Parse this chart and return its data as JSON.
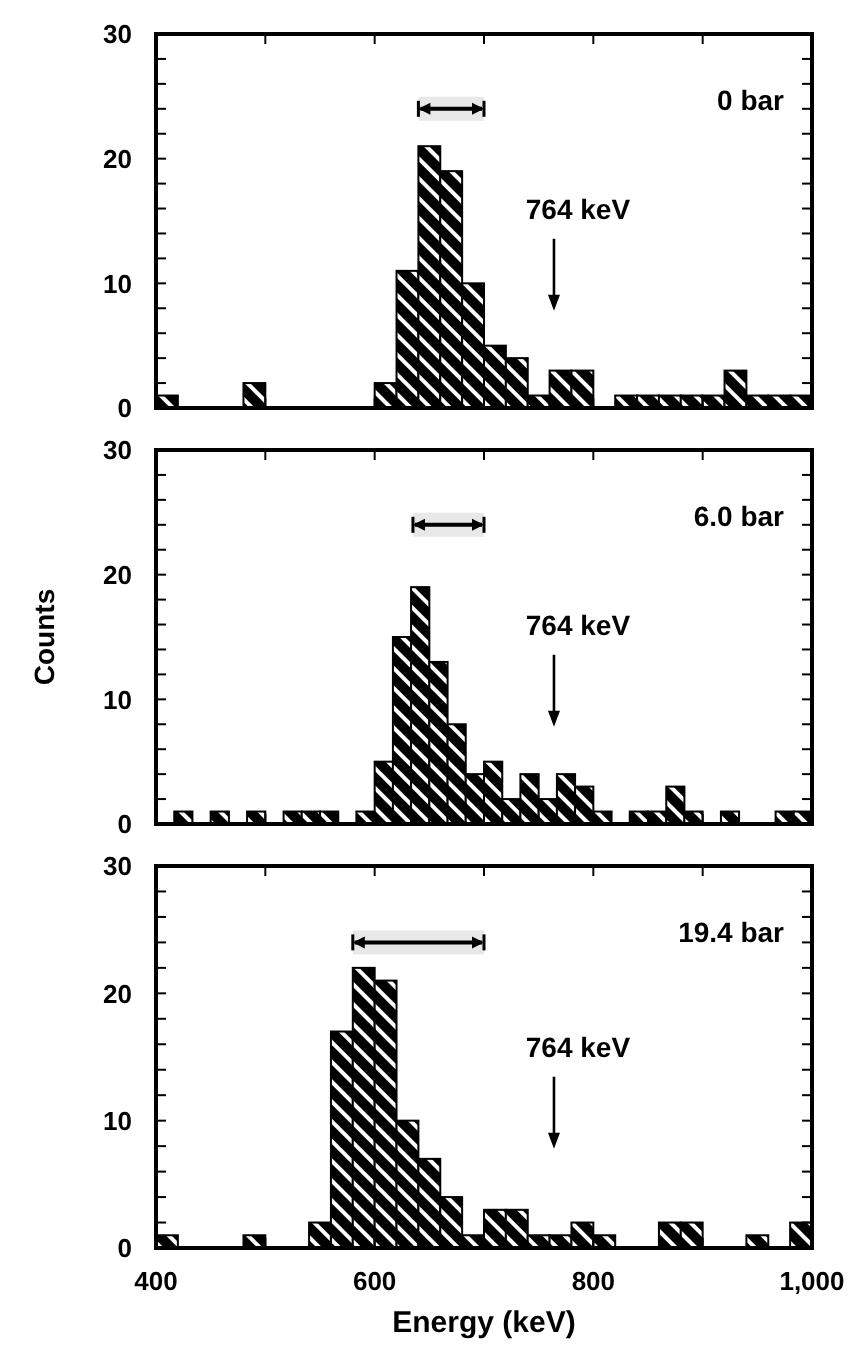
{
  "chart_data": [
    {
      "type": "histogram",
      "title": "0 bar",
      "bins": [
        400,
        420,
        440,
        460,
        480,
        500,
        520,
        540,
        560,
        580,
        600,
        620,
        640,
        660,
        680,
        700,
        720,
        740,
        760,
        780,
        800,
        820,
        840,
        860,
        880,
        900,
        920,
        940,
        960,
        980,
        1000
      ],
      "values": [
        1,
        0,
        0,
        0,
        2,
        0,
        0,
        0,
        0,
        0,
        2,
        11,
        21,
        19,
        10,
        5,
        4,
        1,
        3,
        3,
        0,
        1,
        1,
        1,
        1,
        1,
        3,
        1,
        1,
        1
      ],
      "color": "#000000",
      "xlim": [
        400,
        1000
      ],
      "ylim": [
        0,
        30
      ],
      "xticks": [
        {
          "value": 400,
          "label": null
        },
        {
          "value": 500,
          "label": null
        },
        {
          "value": 600,
          "label": null
        },
        {
          "value": 700,
          "label": null
        },
        {
          "value": 800,
          "label": null
        },
        {
          "value": 900,
          "label": null
        },
        {
          "value": 1000,
          "label": null
        }
      ],
      "yticks": [
        0,
        {
          "value": 2,
          "label": null
        },
        {
          "value": 4,
          "label": null
        },
        {
          "value": 6,
          "label": null
        },
        {
          "value": 8,
          "label": null
        },
        10,
        {
          "value": 12,
          "label": null
        },
        {
          "value": 14,
          "label": null
        },
        {
          "value": 16,
          "label": null
        },
        {
          "value": 18,
          "label": null
        },
        20,
        {
          "value": 22,
          "label": null
        },
        {
          "value": 24,
          "label": null
        },
        {
          "value": 26,
          "label": null
        },
        {
          "value": 28,
          "label": null
        },
        30
      ],
      "tick_labels": "y",
      "ref_lines": [
        {
          "axis": "x",
          "value": 764,
          "label": "764 keV"
        }
      ],
      "bands": [
        {
          "axis": "x",
          "from": 640,
          "to": 700
        }
      ]
    },
    {
      "type": "histogram",
      "title": "6.0 bar",
      "ylabel": "Counts",
      "bins": [
        400,
        416.7,
        433.3,
        450,
        466.7,
        483.3,
        500,
        516.7,
        533.3,
        550,
        566.7,
        583.3,
        600,
        616.7,
        633.3,
        650,
        666.7,
        683.3,
        700,
        716.7,
        733.3,
        750,
        766.7,
        783.3,
        800,
        816.7,
        833.3,
        850,
        866.7,
        883.3,
        900,
        916.7,
        933.3,
        950,
        966.7,
        983.3,
        1000
      ],
      "values": [
        0,
        1,
        0,
        1,
        0,
        1,
        0,
        1,
        1,
        1,
        0,
        1,
        5,
        15,
        19,
        13,
        8,
        4,
        5,
        2,
        4,
        2,
        4,
        3,
        1,
        0,
        1,
        1,
        3,
        1,
        0,
        1,
        0,
        0,
        1,
        1
      ],
      "color": "#000000",
      "xlim": [
        400,
        1000
      ],
      "ylim": [
        0,
        30
      ],
      "xticks": [
        {
          "value": 400,
          "label": null
        },
        {
          "value": 500,
          "label": null
        },
        {
          "value": 600,
          "label": null
        },
        {
          "value": 700,
          "label": null
        },
        {
          "value": 800,
          "label": null
        },
        {
          "value": 900,
          "label": null
        },
        {
          "value": 1000,
          "label": null
        }
      ],
      "yticks": [
        0,
        {
          "value": 2,
          "label": null
        },
        {
          "value": 4,
          "label": null
        },
        {
          "value": 6,
          "label": null
        },
        {
          "value": 8,
          "label": null
        },
        10,
        {
          "value": 12,
          "label": null
        },
        {
          "value": 14,
          "label": null
        },
        {
          "value": 16,
          "label": null
        },
        {
          "value": 18,
          "label": null
        },
        20,
        {
          "value": 22,
          "label": null
        },
        {
          "value": 24,
          "label": null
        },
        {
          "value": 26,
          "label": null
        },
        {
          "value": 28,
          "label": null
        },
        30
      ],
      "tick_labels": "y",
      "ref_lines": [
        {
          "axis": "x",
          "value": 764,
          "label": "764 keV"
        }
      ],
      "bands": [
        {
          "axis": "x",
          "from": 635,
          "to": 700
        }
      ]
    },
    {
      "type": "histogram",
      "title": "19.4 bar",
      "xlabel": "Energy (keV)",
      "bins": [
        400,
        420,
        440,
        460,
        480,
        500,
        520,
        540,
        560,
        580,
        600,
        620,
        640,
        660,
        680,
        700,
        720,
        740,
        760,
        780,
        800,
        820,
        840,
        860,
        880,
        900,
        920,
        940,
        960,
        980,
        1000
      ],
      "values": [
        1,
        0,
        0,
        0,
        1,
        0,
        0,
        2,
        17,
        22,
        21,
        10,
        7,
        4,
        1,
        3,
        3,
        1,
        1,
        2,
        1,
        0,
        0,
        2,
        2,
        0,
        0,
        1,
        0,
        2
      ],
      "color": "#000000",
      "xlim": [
        400,
        1000
      ],
      "ylim": [
        0,
        30
      ],
      "xticks": [
        400,
        {
          "value": 500,
          "label": null
        },
        600,
        {
          "value": 700,
          "label": null
        },
        800,
        {
          "value": 900,
          "label": null
        },
        {
          "value": 1000,
          "label": "1,000"
        }
      ],
      "yticks": [
        0,
        {
          "value": 2,
          "label": null
        },
        {
          "value": 4,
          "label": null
        },
        {
          "value": 6,
          "label": null
        },
        {
          "value": 8,
          "label": null
        },
        10,
        {
          "value": 12,
          "label": null
        },
        {
          "value": 14,
          "label": null
        },
        {
          "value": 16,
          "label": null
        },
        {
          "value": 18,
          "label": null
        },
        20,
        {
          "value": 22,
          "label": null
        },
        {
          "value": 24,
          "label": null
        },
        {
          "value": 26,
          "label": null
        },
        {
          "value": 28,
          "label": null
        },
        30
      ],
      "ref_lines": [
        {
          "axis": "x",
          "value": 764,
          "label": "764 keV"
        }
      ],
      "bands": [
        {
          "axis": "x",
          "from": 580,
          "to": 700
        }
      ]
    }
  ]
}
